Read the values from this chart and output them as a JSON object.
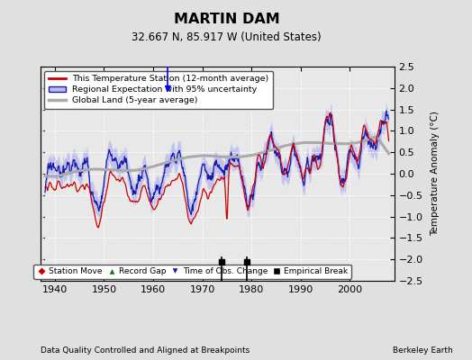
{
  "title": "MARTIN DAM",
  "subtitle": "32.667 N, 85.917 W (United States)",
  "ylabel": "Temperature Anomaly (°C)",
  "xlabel_note": "Data Quality Controlled and Aligned at Breakpoints",
  "credit": "Berkeley Earth",
  "xlim": [
    1937,
    2009
  ],
  "ylim": [
    -2.5,
    2.5
  ],
  "yticks": [
    -2.5,
    -2,
    -1.5,
    -1,
    -0.5,
    0,
    0.5,
    1,
    1.5,
    2,
    2.5
  ],
  "xticks": [
    1940,
    1950,
    1960,
    1970,
    1980,
    1990,
    2000
  ],
  "bg_color": "#e0e0e0",
  "plot_bg_color": "#e8e8e8",
  "legend_labels": [
    "This Temperature Station (12-month average)",
    "Regional Expectation with 95% uncertainty",
    "Global Land (5-year average)"
  ],
  "station_line_color": "#cc0000",
  "regional_line_color": "#1a1aaa",
  "regional_fill_color": "#bbbbee",
  "global_line_color": "#aaaaaa",
  "empirical_break_years": [
    1974,
    1979
  ],
  "time_obs_change_years": [
    1963
  ],
  "station_move_years": [],
  "record_gap_years": []
}
